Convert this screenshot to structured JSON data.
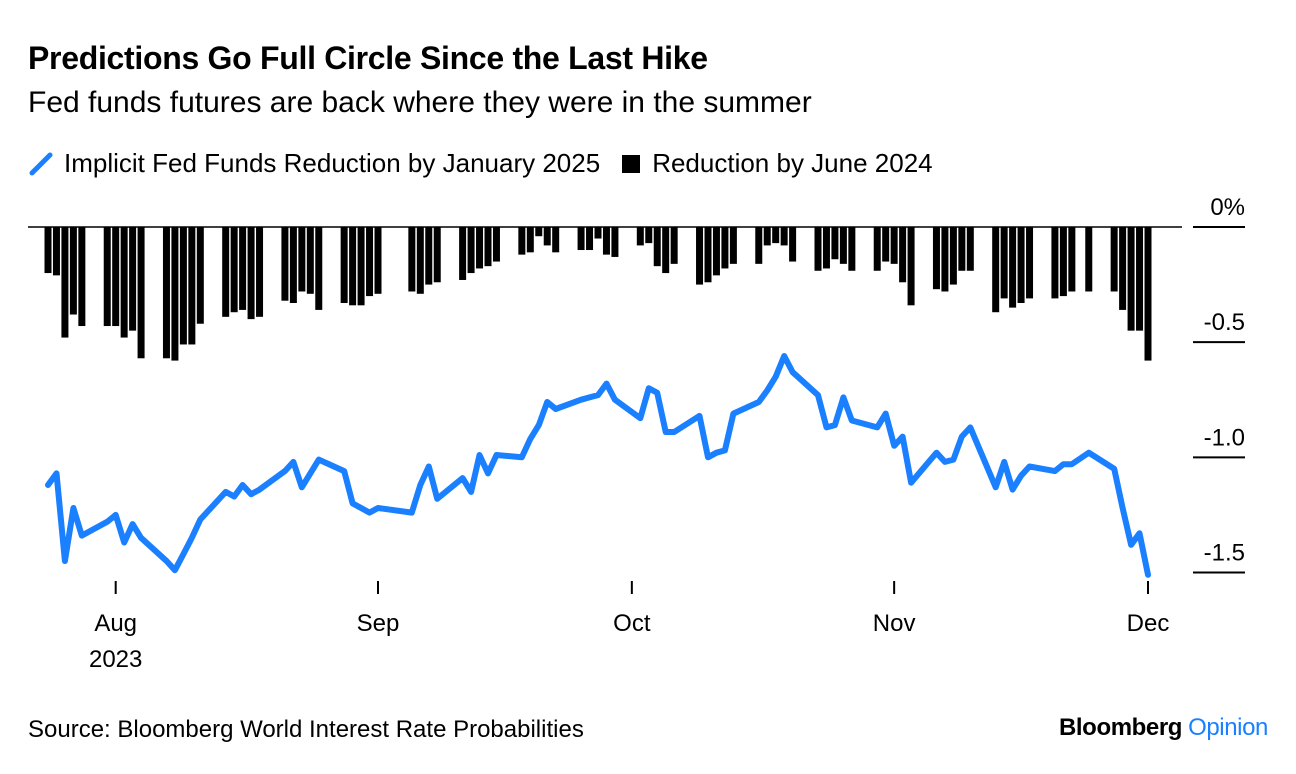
{
  "title": "Predictions Go Full Circle Since the Last Hike",
  "subtitle": "Fed funds futures are back where they were in the summer",
  "source": "Source: Bloomberg World Interest Rate Probabilities",
  "brand": {
    "name": "Bloomberg",
    "suffix": "Opinion"
  },
  "colors": {
    "line": "#1a80ff",
    "bars": "#000000",
    "brand_suffix": "#1a80ff"
  },
  "chart_data": {
    "type": "bar+line",
    "title": "Predictions Go Full Circle Since the Last Hike",
    "subtitle": "Fed funds futures are back where they were in the summer",
    "legend_position": "top-left",
    "grid": false,
    "ylim": [
      -1.55,
      0.0
    ],
    "y_ticks": [
      0,
      -0.5,
      -1.0,
      -1.5
    ],
    "y_tick_labels": [
      "0%",
      "-0.5",
      "-1.0",
      "-1.5"
    ],
    "x_ticks": [
      "2023-08-01",
      "2023-09-01",
      "2023-10-01",
      "2023-11-01",
      "2023-12-01"
    ],
    "x_tick_labels": [
      "Aug",
      "Sep",
      "Oct",
      "Nov",
      "Dec"
    ],
    "x_year_label": "2023",
    "xlim": [
      "2023-07-24",
      "2023-12-01"
    ],
    "series": [
      {
        "name": "Implicit Fed Funds Reduction by January 2025",
        "type": "line",
        "x": [
          "2023-07-24",
          "2023-07-25",
          "2023-07-26",
          "2023-07-27",
          "2023-07-28",
          "2023-07-31",
          "2023-08-01",
          "2023-08-02",
          "2023-08-03",
          "2023-08-04",
          "2023-08-07",
          "2023-08-08",
          "2023-08-09",
          "2023-08-10",
          "2023-08-11",
          "2023-08-14",
          "2023-08-15",
          "2023-08-16",
          "2023-08-17",
          "2023-08-18",
          "2023-08-21",
          "2023-08-22",
          "2023-08-23",
          "2023-08-24",
          "2023-08-25",
          "2023-08-28",
          "2023-08-29",
          "2023-08-30",
          "2023-08-31",
          "2023-09-01",
          "2023-09-05",
          "2023-09-06",
          "2023-09-07",
          "2023-09-08",
          "2023-09-11",
          "2023-09-12",
          "2023-09-13",
          "2023-09-14",
          "2023-09-15",
          "2023-09-18",
          "2023-09-19",
          "2023-09-20",
          "2023-09-21",
          "2023-09-22",
          "2023-09-25",
          "2023-09-26",
          "2023-09-27",
          "2023-09-28",
          "2023-09-29",
          "2023-10-02",
          "2023-10-03",
          "2023-10-04",
          "2023-10-05",
          "2023-10-06",
          "2023-10-09",
          "2023-10-10",
          "2023-10-11",
          "2023-10-12",
          "2023-10-13",
          "2023-10-16",
          "2023-10-17",
          "2023-10-18",
          "2023-10-19",
          "2023-10-20",
          "2023-10-23",
          "2023-10-24",
          "2023-10-25",
          "2023-10-26",
          "2023-10-27",
          "2023-10-30",
          "2023-10-31",
          "2023-11-01",
          "2023-11-02",
          "2023-11-03",
          "2023-11-06",
          "2023-11-07",
          "2023-11-08",
          "2023-11-09",
          "2023-11-10",
          "2023-11-13",
          "2023-11-14",
          "2023-11-15",
          "2023-11-16",
          "2023-11-17",
          "2023-11-20",
          "2023-11-21",
          "2023-11-22",
          "2023-11-24",
          "2023-11-27",
          "2023-11-28",
          "2023-11-29",
          "2023-11-30",
          "2023-12-01"
        ],
        "values": [
          -1.12,
          -1.07,
          -1.45,
          -1.22,
          -1.34,
          -1.28,
          -1.25,
          -1.37,
          -1.29,
          -1.35,
          -1.45,
          -1.49,
          -1.42,
          -1.35,
          -1.27,
          -1.15,
          -1.17,
          -1.12,
          -1.16,
          -1.14,
          -1.06,
          -1.02,
          -1.13,
          -1.07,
          -1.01,
          -1.06,
          -1.2,
          -1.22,
          -1.24,
          -1.22,
          -1.24,
          -1.12,
          -1.04,
          -1.18,
          -1.09,
          -1.15,
          -0.99,
          -1.07,
          -0.99,
          -1.0,
          -0.92,
          -0.86,
          -0.76,
          -0.79,
          -0.75,
          -0.74,
          -0.73,
          -0.68,
          -0.75,
          -0.83,
          -0.7,
          -0.72,
          -0.89,
          -0.89,
          -0.82,
          -1.0,
          -0.98,
          -0.97,
          -0.81,
          -0.76,
          -0.71,
          -0.65,
          -0.56,
          -0.63,
          -0.73,
          -0.87,
          -0.86,
          -0.74,
          -0.84,
          -0.87,
          -0.81,
          -0.95,
          -0.91,
          -1.11,
          -0.98,
          -1.02,
          -1.01,
          -0.91,
          -0.87,
          -1.13,
          -1.02,
          -1.14,
          -1.08,
          -1.04,
          -1.06,
          -1.03,
          -1.03,
          -0.98,
          -1.05,
          -1.22,
          -1.38,
          -1.33,
          -1.51
        ]
      },
      {
        "name": "Reduction by June 2024",
        "type": "bar",
        "x": [
          "2023-07-24",
          "2023-07-25",
          "2023-07-26",
          "2023-07-27",
          "2023-07-28",
          "2023-07-31",
          "2023-08-01",
          "2023-08-02",
          "2023-08-03",
          "2023-08-04",
          "2023-08-07",
          "2023-08-08",
          "2023-08-09",
          "2023-08-10",
          "2023-08-11",
          "2023-08-14",
          "2023-08-15",
          "2023-08-16",
          "2023-08-17",
          "2023-08-18",
          "2023-08-21",
          "2023-08-22",
          "2023-08-23",
          "2023-08-24",
          "2023-08-25",
          "2023-08-28",
          "2023-08-29",
          "2023-08-30",
          "2023-08-31",
          "2023-09-01",
          "2023-09-05",
          "2023-09-06",
          "2023-09-07",
          "2023-09-08",
          "2023-09-11",
          "2023-09-12",
          "2023-09-13",
          "2023-09-14",
          "2023-09-15",
          "2023-09-18",
          "2023-09-19",
          "2023-09-20",
          "2023-09-21",
          "2023-09-22",
          "2023-09-25",
          "2023-09-26",
          "2023-09-27",
          "2023-09-28",
          "2023-09-29",
          "2023-10-02",
          "2023-10-03",
          "2023-10-04",
          "2023-10-05",
          "2023-10-06",
          "2023-10-09",
          "2023-10-10",
          "2023-10-11",
          "2023-10-12",
          "2023-10-13",
          "2023-10-16",
          "2023-10-17",
          "2023-10-18",
          "2023-10-19",
          "2023-10-20",
          "2023-10-23",
          "2023-10-24",
          "2023-10-25",
          "2023-10-26",
          "2023-10-27",
          "2023-10-30",
          "2023-10-31",
          "2023-11-01",
          "2023-11-02",
          "2023-11-03",
          "2023-11-06",
          "2023-11-07",
          "2023-11-08",
          "2023-11-09",
          "2023-11-10",
          "2023-11-13",
          "2023-11-14",
          "2023-11-15",
          "2023-11-16",
          "2023-11-17",
          "2023-11-20",
          "2023-11-21",
          "2023-11-22",
          "2023-11-24",
          "2023-11-27",
          "2023-11-28",
          "2023-11-29",
          "2023-11-30",
          "2023-12-01"
        ],
        "values": [
          -0.2,
          -0.21,
          -0.48,
          -0.38,
          -0.43,
          -0.43,
          -0.43,
          -0.48,
          -0.45,
          -0.57,
          -0.57,
          -0.58,
          -0.51,
          -0.51,
          -0.42,
          -0.39,
          -0.37,
          -0.36,
          -0.4,
          -0.39,
          -0.32,
          -0.33,
          -0.28,
          -0.29,
          -0.36,
          -0.33,
          -0.34,
          -0.34,
          -0.3,
          -0.29,
          -0.28,
          -0.29,
          -0.25,
          -0.24,
          -0.23,
          -0.2,
          -0.18,
          -0.17,
          -0.15,
          -0.12,
          -0.11,
          -0.04,
          -0.08,
          -0.11,
          -0.1,
          -0.1,
          -0.05,
          -0.12,
          -0.13,
          -0.08,
          -0.07,
          -0.17,
          -0.2,
          -0.16,
          -0.25,
          -0.24,
          -0.21,
          -0.18,
          -0.16,
          -0.16,
          -0.08,
          -0.07,
          -0.08,
          -0.15,
          -0.19,
          -0.18,
          -0.14,
          -0.16,
          -0.19,
          -0.19,
          -0.15,
          -0.16,
          -0.24,
          -0.34,
          -0.27,
          -0.28,
          -0.25,
          -0.19,
          -0.19,
          -0.37,
          -0.31,
          -0.35,
          -0.33,
          -0.31,
          -0.31,
          -0.3,
          -0.28,
          -0.28,
          -0.28,
          -0.36,
          -0.45,
          -0.45,
          -0.58
        ]
      }
    ]
  }
}
